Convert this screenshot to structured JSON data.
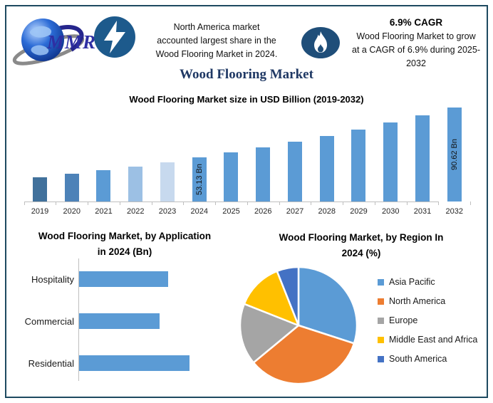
{
  "page": {
    "background": "#ffffff",
    "border_color": "#1e4a60"
  },
  "header": {
    "logo": {
      "text": "MMR"
    },
    "bolt_icon_color": "#1d5a8c",
    "flame_icon_color": "#1f4e79",
    "north_america_note": "North America market\naccounted largest share in the\nWood Flooring Market in 2024.",
    "cagr": {
      "title": "6.9% CAGR",
      "text": "Wood Flooring Market to grow\nat a CAGR of 6.9% during 2025-\n2032"
    }
  },
  "main_title": "Wood Flooring Market",
  "chart_data": [
    {
      "type": "bar",
      "title": "Wood Flooring Market size in USD Billion (2019-2032)",
      "categories": [
        "2019",
        "2020",
        "2021",
        "2022",
        "2023",
        "2024",
        "2025",
        "2026",
        "2027",
        "2028",
        "2029",
        "2030",
        "2031",
        "2032"
      ],
      "values": [
        38.1,
        40.7,
        43.5,
        46.5,
        49.7,
        53.13,
        56.8,
        60.7,
        64.9,
        69.4,
        74.2,
        79.3,
        84.8,
        90.62
      ],
      "data_labels": [
        "",
        "",
        "",
        "",
        "",
        "53.13 Bn",
        "",
        "",
        "",
        "",
        "",
        "",
        "",
        "90.62 Bn"
      ],
      "xlabel": "",
      "ylabel": "",
      "ylim": [
        20,
        95
      ],
      "grid": false,
      "bar_colors": [
        "#41719c",
        "#4d82b8",
        "#5b9bd5",
        "#9cc0e4",
        "#c7d9ee",
        "#5b9bd5",
        "#5b9bd5",
        "#5b9bd5",
        "#5b9bd5",
        "#5b9bd5",
        "#5b9bd5",
        "#5b9bd5",
        "#5b9bd5",
        "#5b9bd5"
      ]
    },
    {
      "type": "bar",
      "orientation": "horizontal",
      "title": "Wood Flooring Market, by Application\nin 2024 (Bn)",
      "categories": [
        "Hospitality",
        "Commercial",
        "Residential"
      ],
      "values": [
        20,
        18,
        24.8
      ],
      "xlim": [
        0,
        28
      ],
      "grid": false,
      "bar_color": "#5b9bd5"
    },
    {
      "type": "pie",
      "title": "Wood Flooring Market, by Region In\n2024 (%)",
      "labels": [
        "Asia Pacific",
        "North America",
        "Europe",
        "Middle East and Africa",
        "South America"
      ],
      "values": [
        30,
        34,
        17,
        13,
        6
      ],
      "colors": [
        "#5b9bd5",
        "#ed7d31",
        "#a5a5a5",
        "#ffc000",
        "#4472c4"
      ],
      "legend_position": "right"
    }
  ]
}
